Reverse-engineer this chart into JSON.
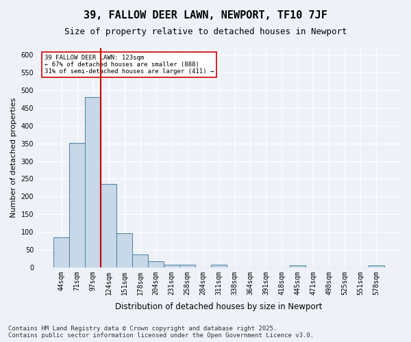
{
  "title": "39, FALLOW DEER LAWN, NEWPORT, TF10 7JF",
  "subtitle": "Size of property relative to detached houses in Newport",
  "xlabel": "Distribution of detached houses by size in Newport",
  "ylabel": "Number of detached properties",
  "categories": [
    "44sqm",
    "71sqm",
    "97sqm",
    "124sqm",
    "151sqm",
    "178sqm",
    "204sqm",
    "231sqm",
    "258sqm",
    "284sqm",
    "311sqm",
    "338sqm",
    "364sqm",
    "391sqm",
    "418sqm",
    "445sqm",
    "471sqm",
    "498sqm",
    "525sqm",
    "551sqm",
    "578sqm"
  ],
  "values": [
    85,
    352,
    480,
    236,
    96,
    37,
    16,
    7,
    8,
    0,
    7,
    0,
    0,
    0,
    0,
    5,
    0,
    0,
    0,
    0,
    5
  ],
  "bar_color": "#c8d8e8",
  "bar_edge_color": "#5588aa",
  "vline_x": 3,
  "vline_color": "#cc0000",
  "annotation_text": "39 FALLOW DEER LAWN: 123sqm\n← 67% of detached houses are smaller (888)\n31% of semi-detached houses are larger (411) →",
  "annotation_box_color": "#ffffff",
  "annotation_box_edge": "#cc0000",
  "ylim": [
    0,
    620
  ],
  "yticks": [
    0,
    50,
    100,
    150,
    200,
    250,
    300,
    350,
    400,
    450,
    500,
    550,
    600
  ],
  "footer": "Contains HM Land Registry data © Crown copyright and database right 2025.\nContains public sector information licensed under the Open Government Licence v3.0.",
  "bg_color": "#eef2f8",
  "plot_bg_color": "#eef2f8",
  "grid_color": "#ffffff",
  "title_fontsize": 11,
  "subtitle_fontsize": 9,
  "axis_label_fontsize": 8,
  "tick_fontsize": 7,
  "footer_fontsize": 6.5
}
